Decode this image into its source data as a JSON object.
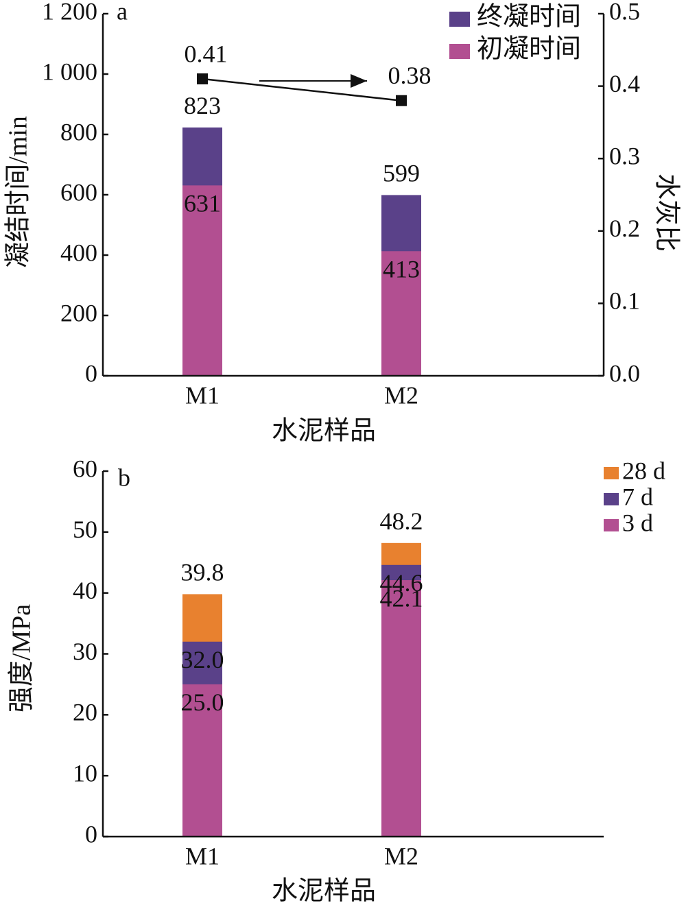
{
  "chart_data": [
    {
      "type": "bar",
      "panel_label": "a",
      "xlabel": "水泥样品",
      "ylabel": "凝结时间/min",
      "y2label": "水灰比",
      "categories": [
        "M1",
        "M2"
      ],
      "series": [
        {
          "name": "终凝时间",
          "color": "#5a4189",
          "values": [
            823,
            599
          ]
        },
        {
          "name": "初凝时间",
          "color": "#b24f91",
          "values": [
            631,
            413
          ]
        },
        {
          "type": "line",
          "axis": "y2",
          "color": "#111111",
          "values": [
            0.41,
            0.38
          ]
        }
      ],
      "ylim": [
        0,
        1200
      ],
      "yticks": [
        0,
        200,
        400,
        600,
        800,
        {
          "value": 1000,
          "label": "1 000"
        },
        {
          "value": 1200,
          "label": "1 200"
        }
      ],
      "y2lim": [
        0,
        0.5
      ],
      "y2ticks": [
        {
          "value": 0,
          "label": "0.0"
        },
        0.1,
        0.2,
        0.3,
        0.4,
        0.5
      ],
      "legend": "upper right"
    },
    {
      "type": "bar",
      "panel_label": "b",
      "xlabel": "水泥样品",
      "ylabel": "强度/MPa",
      "categories": [
        "M1",
        "M2"
      ],
      "series": [
        {
          "name": "28 d",
          "color": "#e8812f",
          "values": [
            39.8,
            48.2
          ]
        },
        {
          "name": "7 d",
          "color": "#5a4189",
          "values": [
            32,
            44.6
          ],
          "value_labels": [
            "32.0",
            "44.6"
          ]
        },
        {
          "name": "3 d",
          "color": "#b24f91",
          "values": [
            25,
            42.1
          ],
          "value_labels": [
            "25.0",
            "42.1"
          ]
        }
      ],
      "ylim": [
        0,
        60
      ],
      "yticks": [
        0,
        10,
        20,
        30,
        40,
        50,
        60
      ],
      "legend": "upper right"
    }
  ]
}
